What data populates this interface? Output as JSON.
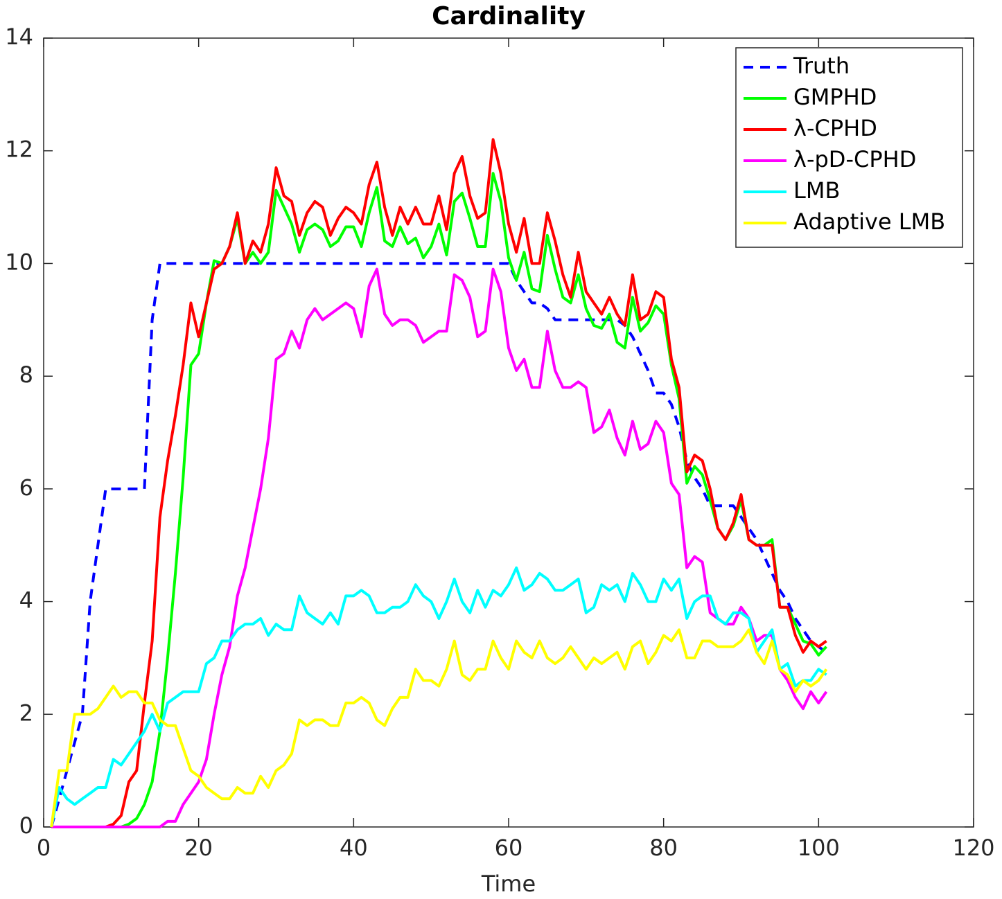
{
  "chart_data": {
    "type": "line",
    "title": "Cardinality",
    "x_label": "Time",
    "x": [
      1,
      2,
      3,
      4,
      5,
      6,
      7,
      8,
      9,
      10,
      11,
      12,
      13,
      14,
      15,
      16,
      17,
      18,
      19,
      20,
      21,
      22,
      23,
      24,
      25,
      26,
      27,
      28,
      29,
      30,
      31,
      32,
      33,
      34,
      35,
      36,
      37,
      38,
      39,
      40,
      41,
      42,
      43,
      44,
      45,
      46,
      47,
      48,
      49,
      50,
      51,
      52,
      53,
      54,
      55,
      56,
      57,
      58,
      59,
      60,
      61,
      62,
      63,
      64,
      65,
      66,
      67,
      68,
      69,
      70,
      71,
      72,
      73,
      74,
      75,
      76,
      77,
      78,
      79,
      80,
      81,
      82,
      83,
      84,
      85,
      86,
      87,
      88,
      89,
      90,
      91,
      92,
      93,
      94,
      95,
      96,
      97,
      98,
      99,
      100,
      101
    ],
    "series": [
      {
        "name": "Truth",
        "color": "#0000ff",
        "dashed": true,
        "values": [
          0,
          0.5,
          1,
          1.5,
          2,
          4,
          5,
          6,
          6,
          6,
          6,
          6,
          6,
          9,
          10,
          10,
          10,
          10,
          10,
          10,
          10,
          10,
          10,
          10,
          10,
          10,
          10,
          10,
          10,
          10,
          10,
          10,
          10,
          10,
          10,
          10,
          10,
          10,
          10,
          10,
          10,
          10,
          10,
          10,
          10,
          10,
          10,
          10,
          10,
          10,
          10,
          10,
          10,
          10,
          10,
          10,
          10,
          10,
          10,
          10,
          9.7,
          9.5,
          9.3,
          9.3,
          9.2,
          9,
          9,
          9,
          9,
          9,
          9,
          9,
          9,
          9,
          8.9,
          8.7,
          8.4,
          8.1,
          7.7,
          7.7,
          7.5,
          7.1,
          6.5,
          6.2,
          6,
          5.7,
          5.7,
          5.7,
          5.7,
          5.5,
          5.3,
          5.1,
          4.8,
          4.5,
          4.2,
          4,
          3.7,
          3.5,
          3.3,
          3.2,
          3.1
        ]
      },
      {
        "name": "GMPHD",
        "color": "#00ff00",
        "values": [
          0,
          0,
          0,
          0,
          0,
          0,
          0,
          0,
          0,
          0,
          0.05,
          0.15,
          0.4,
          0.8,
          1.7,
          3,
          4.5,
          6.2,
          8.2,
          8.4,
          9.3,
          10.05,
          10,
          10.3,
          10.8,
          10,
          10.2,
          10,
          10.2,
          11.3,
          11,
          10.7,
          10.2,
          10.6,
          10.7,
          10.6,
          10.3,
          10.4,
          10.65,
          10.65,
          10.3,
          10.9,
          11.35,
          10.4,
          10.3,
          10.65,
          10.35,
          10.45,
          10.1,
          10.3,
          10.7,
          10.15,
          11.1,
          11.25,
          10.8,
          10.3,
          10.3,
          11.6,
          11.1,
          10.1,
          9.7,
          10.2,
          9.55,
          9.5,
          10.5,
          9.9,
          9.4,
          9.3,
          9.8,
          9.2,
          8.9,
          8.85,
          9.1,
          8.6,
          8.5,
          9.4,
          8.8,
          8.95,
          9.25,
          9.1,
          8.2,
          7.6,
          6.1,
          6.4,
          6.25,
          5.8,
          5.3,
          5.1,
          5.35,
          5.8,
          5.1,
          5,
          5,
          5.1,
          3.9,
          3.9,
          3.6,
          3.3,
          3.25,
          3.05,
          3.2
        ]
      },
      {
        "name": "λ-CPHD",
        "color": "#ff0000",
        "values": [
          0,
          0,
          0,
          0,
          0,
          0,
          0,
          0,
          0.05,
          0.2,
          0.8,
          1,
          2.2,
          3.3,
          5.5,
          6.5,
          7.3,
          8.2,
          9.3,
          8.7,
          9.3,
          9.9,
          10,
          10.3,
          10.9,
          10,
          10.4,
          10.2,
          10.7,
          11.7,
          11.2,
          11.1,
          10.5,
          10.9,
          11.1,
          11,
          10.5,
          10.8,
          11,
          10.9,
          10.7,
          11.4,
          11.8,
          11,
          10.5,
          11,
          10.7,
          11,
          10.7,
          10.7,
          11.2,
          10.6,
          11.6,
          11.9,
          11.2,
          10.8,
          10.9,
          12.2,
          11.6,
          10.7,
          10.2,
          10.8,
          10,
          10,
          10.9,
          10.4,
          9.8,
          9.4,
          10.2,
          9.5,
          9.3,
          9.1,
          9.4,
          9.1,
          8.9,
          9.8,
          9,
          9.1,
          9.5,
          9.4,
          8.3,
          7.8,
          6.3,
          6.6,
          6.5,
          6,
          5.3,
          5.1,
          5.4,
          5.9,
          5.1,
          5,
          5,
          5,
          3.9,
          3.9,
          3.4,
          3.1,
          3.3,
          3.2,
          3.3
        ]
      },
      {
        "name": "λ-pD-CPHD",
        "color": "#ff00ff",
        "values": [
          0,
          0,
          0,
          0,
          0,
          0,
          0,
          0,
          0,
          0,
          0,
          0,
          0,
          0,
          0,
          0.1,
          0.1,
          0.4,
          0.6,
          0.8,
          1.2,
          2,
          2.7,
          3.2,
          4.1,
          4.6,
          5.3,
          6,
          6.9,
          8.3,
          8.4,
          8.8,
          8.5,
          9,
          9.2,
          9,
          9.1,
          9.2,
          9.3,
          9.2,
          8.7,
          9.6,
          9.9,
          9.1,
          8.9,
          9,
          9,
          8.9,
          8.6,
          8.7,
          8.8,
          8.8,
          9.8,
          9.7,
          9.4,
          8.7,
          8.8,
          9.9,
          9.5,
          8.5,
          8.1,
          8.3,
          7.8,
          7.8,
          8.8,
          8.1,
          7.8,
          7.8,
          7.9,
          7.8,
          7,
          7.1,
          7.4,
          6.9,
          6.6,
          7.2,
          6.7,
          6.8,
          7.2,
          7,
          6.1,
          5.9,
          4.6,
          4.8,
          4.7,
          3.8,
          3.7,
          3.6,
          3.6,
          3.9,
          3.7,
          3.3,
          3.4,
          3.4,
          2.8,
          2.6,
          2.3,
          2.1,
          2.4,
          2.2,
          2.4
        ]
      },
      {
        "name": "LMB",
        "color": "#00ffff",
        "values": [
          0,
          0.7,
          0.5,
          0.4,
          0.5,
          0.6,
          0.7,
          0.7,
          1.2,
          1.1,
          1.3,
          1.5,
          1.7,
          2,
          1.7,
          2.2,
          2.3,
          2.4,
          2.4,
          2.4,
          2.9,
          3,
          3.3,
          3.3,
          3.5,
          3.6,
          3.6,
          3.7,
          3.4,
          3.6,
          3.5,
          3.5,
          4.1,
          3.8,
          3.7,
          3.6,
          3.8,
          3.6,
          4.1,
          4.1,
          4.2,
          4.1,
          3.8,
          3.8,
          3.9,
          3.9,
          4,
          4.3,
          4.1,
          4,
          3.7,
          4,
          4.4,
          4,
          3.8,
          4.2,
          3.9,
          4.2,
          4.1,
          4.3,
          4.6,
          4.2,
          4.3,
          4.5,
          4.4,
          4.2,
          4.2,
          4.3,
          4.4,
          3.8,
          3.9,
          4.3,
          4.2,
          4.3,
          4,
          4.5,
          4.3,
          4,
          4,
          4.4,
          4.2,
          4.4,
          3.7,
          4,
          4.1,
          4.1,
          3.7,
          3.6,
          3.8,
          3.8,
          3.7,
          3.1,
          3.3,
          3.5,
          2.8,
          2.9,
          2.5,
          2.6,
          2.6,
          2.8,
          2.7
        ]
      },
      {
        "name": "Adaptive LMB",
        "color": "#ffff00",
        "values": [
          0,
          1,
          1,
          2,
          2,
          2,
          2.1,
          2.3,
          2.5,
          2.3,
          2.4,
          2.4,
          2.2,
          2.2,
          1.9,
          1.8,
          1.8,
          1.4,
          1,
          0.9,
          0.7,
          0.6,
          0.5,
          0.5,
          0.7,
          0.6,
          0.6,
          0.9,
          0.7,
          1,
          1.1,
          1.3,
          1.9,
          1.8,
          1.9,
          1.9,
          1.8,
          1.8,
          2.2,
          2.2,
          2.3,
          2.2,
          1.9,
          1.8,
          2.1,
          2.3,
          2.3,
          2.8,
          2.6,
          2.6,
          2.5,
          2.8,
          3.3,
          2.7,
          2.6,
          2.8,
          2.8,
          3.3,
          3,
          2.8,
          3.3,
          3.1,
          3,
          3.3,
          3,
          2.9,
          3,
          3.2,
          3,
          2.8,
          3,
          2.9,
          3,
          3.1,
          2.8,
          3.2,
          3.3,
          2.9,
          3.1,
          3.4,
          3.3,
          3.5,
          3,
          3,
          3.3,
          3.3,
          3.2,
          3.2,
          3.2,
          3.3,
          3.5,
          3.1,
          2.9,
          3.3,
          2.8,
          2.7,
          2.4,
          2.6,
          2.5,
          2.6,
          2.8
        ]
      }
    ],
    "xlim": [
      0,
      120
    ],
    "xticks": [
      0,
      20,
      40,
      60,
      80,
      100,
      120
    ],
    "ylim": [
      0,
      14
    ],
    "yticks": [
      0,
      2,
      4,
      6,
      8,
      10,
      12,
      14
    ],
    "grid": false,
    "legend": "upper-right"
  }
}
